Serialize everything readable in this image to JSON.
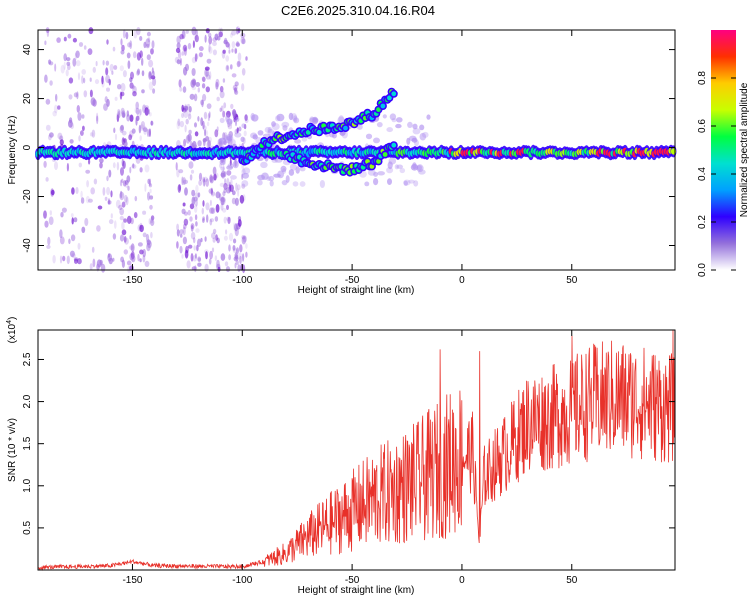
{
  "title": "C2E6.2025.310.04.16.R04",
  "colors": {
    "snr_line": "#e8312a",
    "scatter_purple": "#7a1fd6",
    "axis": "#000000"
  },
  "chart_data": [
    {
      "type": "heatmap",
      "title": "C2E6.2025.310.04.16.R04",
      "xlabel": "Height of straight line (km)",
      "ylabel": "Frequency (Hz)",
      "xlim": [
        -193,
        97
      ],
      "ylim": [
        -50,
        48
      ],
      "xticks": [
        -150,
        -100,
        -50,
        0,
        50
      ],
      "yticks": [
        -40,
        -20,
        0,
        20,
        40
      ],
      "main_band_frequency_hz": -2,
      "branches": [
        {
          "name": "upper-branch",
          "x": [
            -100,
            -90,
            -80,
            -70,
            -60,
            -50,
            -40,
            -30
          ],
          "y": [
            -6,
            2,
            5,
            7,
            8,
            10,
            14,
            24
          ]
        },
        {
          "name": "lower-branch",
          "x": [
            -80,
            -70,
            -60,
            -50,
            -40,
            -30
          ],
          "y": [
            -3,
            -6,
            -8,
            -9,
            -6,
            2
          ]
        }
      ]
    },
    {
      "type": "colorbar",
      "label": "Normalized spectral amplitude",
      "range": [
        0.0,
        1.0
      ],
      "ticks": [
        "0.0",
        "0.2",
        "0.4",
        "0.6",
        "0.8"
      ],
      "stops": [
        "#ffffff",
        "#9370db",
        "#2f00ff",
        "#00a0ff",
        "#00e0d0",
        "#00ff40",
        "#c8ff00",
        "#ffcc00",
        "#ff3000",
        "#ff0080"
      ]
    },
    {
      "type": "line",
      "xlabel": "Height of straight line (km)",
      "ylabel": "SNR (10 * v/v)",
      "exponent_label": "(x10",
      "exponent": "4",
      "xlim": [
        -193,
        97
      ],
      "ylim": [
        0,
        2.85
      ],
      "xticks": [
        -150,
        -100,
        -50,
        0,
        50
      ],
      "yticks": [
        0.5,
        1.0,
        1.5,
        2.0,
        2.5
      ],
      "ytick_labels": [
        "0.5",
        "1.0",
        "1.5",
        "2.0",
        "2.5"
      ],
      "envelope": {
        "x": [
          -193,
          -160,
          -150,
          -140,
          -100,
          -90,
          -80,
          -70,
          -60,
          -50,
          -40,
          -30,
          -20,
          -10,
          0,
          5,
          8,
          10,
          20,
          30,
          40,
          50,
          60,
          70,
          80,
          90,
          97
        ],
        "y": [
          0.03,
          0.05,
          0.1,
          0.05,
          0.04,
          0.1,
          0.2,
          0.4,
          0.55,
          0.7,
          0.85,
          0.95,
          1.05,
          1.2,
          1.35,
          1.4,
          0.3,
          1.1,
          1.4,
          1.75,
          1.8,
          1.9,
          2.0,
          2.05,
          2.0,
          1.95,
          1.9
        ]
      },
      "peaks": [
        {
          "x": -10,
          "y": 2.62
        },
        {
          "x": 8,
          "y": 2.6
        },
        {
          "x": 50,
          "y": 2.78
        },
        {
          "x": 96,
          "y": 2.85
        }
      ]
    }
  ]
}
